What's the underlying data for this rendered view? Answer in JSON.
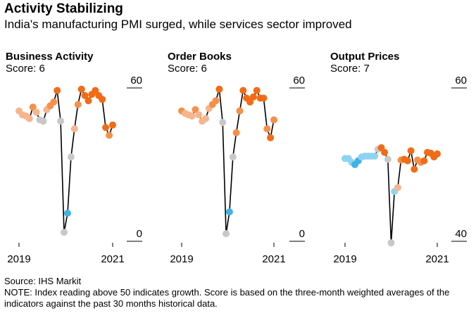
{
  "title": "Activity Stabilizing",
  "subtitle": "India's manufacturing PMI surged, while services sector improved",
  "source": "Source: IHS Markit",
  "note": "NOTE: Index reading above 50 indicates growth. Score is based on the three-month weighted averages of the indicators against the past 30 months historical data.",
  "colors": {
    "line": "#000000",
    "rule": "#000000",
    "dark_orange": "#f26b16",
    "mid_orange": "#f5904a",
    "light_orange": "#f6b58c",
    "grey": "#c8c8c8",
    "blue": "#3cb4e6",
    "light_blue": "#8fd3f2"
  },
  "chart_data": [
    {
      "type": "line",
      "title": "Business Activity",
      "subtitle": "Score: 6",
      "x_tick_labels": [
        "2019",
        "2021"
      ],
      "ylim": [
        0,
        60
      ],
      "y_tick_labels": [
        "60",
        "0"
      ],
      "series": [
        {
          "values": [
            {
              "v": 51,
              "c": "light_orange"
            },
            {
              "v": 49.5,
              "c": "light_orange"
            },
            {
              "v": 49,
              "c": "light_orange"
            },
            {
              "v": 48,
              "c": "light_orange"
            },
            {
              "v": 52.5,
              "c": "mid_orange"
            },
            {
              "v": 50.5,
              "c": "light_orange"
            },
            {
              "v": 47.5,
              "c": "grey"
            },
            {
              "v": 47,
              "c": "grey"
            },
            {
              "v": 51.5,
              "c": "light_orange"
            },
            {
              "v": 53,
              "c": "mid_orange"
            },
            {
              "v": 54.5,
              "c": "mid_orange"
            },
            {
              "v": 59,
              "c": "dark_orange"
            },
            {
              "v": 47,
              "c": "grey"
            },
            {
              "v": 3.5,
              "c": "grey"
            },
            {
              "v": 11,
              "c": "blue"
            },
            {
              "v": 33,
              "c": "grey"
            },
            {
              "v": 44,
              "c": "light_orange"
            },
            {
              "v": 53.5,
              "c": "mid_orange"
            },
            {
              "v": 59.5,
              "c": "dark_orange"
            },
            {
              "v": 57,
              "c": "dark_orange"
            },
            {
              "v": 55,
              "c": "dark_orange"
            },
            {
              "v": 57.5,
              "c": "dark_orange"
            },
            {
              "v": 59,
              "c": "dark_orange"
            },
            {
              "v": 57,
              "c": "dark_orange"
            },
            {
              "v": 55.5,
              "c": "dark_orange"
            },
            {
              "v": 44.5,
              "c": "dark_orange"
            },
            {
              "v": 41.5,
              "c": "mid_orange"
            },
            {
              "v": 45.5,
              "c": "dark_orange"
            }
          ]
        }
      ]
    },
    {
      "type": "line",
      "title": "Order Books",
      "subtitle": "Score: 6",
      "x_tick_labels": [
        "2019",
        "2021"
      ],
      "ylim": [
        0,
        60
      ],
      "y_tick_labels": [
        "60",
        "0"
      ],
      "series": [
        {
          "values": [
            {
              "v": 51,
              "c": "mid_orange"
            },
            {
              "v": 50,
              "c": "light_orange"
            },
            {
              "v": 49.5,
              "c": "light_orange"
            },
            {
              "v": 49,
              "c": "light_orange"
            },
            {
              "v": 51.5,
              "c": "mid_orange"
            },
            {
              "v": 49.5,
              "c": "light_orange"
            },
            {
              "v": 47,
              "c": "light_orange"
            },
            {
              "v": 48,
              "c": "light_orange"
            },
            {
              "v": 52,
              "c": "light_orange"
            },
            {
              "v": 53.5,
              "c": "mid_orange"
            },
            {
              "v": 55,
              "c": "mid_orange"
            },
            {
              "v": 59.5,
              "c": "dark_orange"
            },
            {
              "v": 46.5,
              "c": "grey"
            },
            {
              "v": 3,
              "c": "grey"
            },
            {
              "v": 11.5,
              "c": "blue"
            },
            {
              "v": 33,
              "c": "grey"
            },
            {
              "v": 42.5,
              "c": "mid_orange"
            },
            {
              "v": 51,
              "c": "mid_orange"
            },
            {
              "v": 59,
              "c": "dark_orange"
            },
            {
              "v": 56,
              "c": "dark_orange"
            },
            {
              "v": 54.5,
              "c": "dark_orange"
            },
            {
              "v": 56.5,
              "c": "dark_orange"
            },
            {
              "v": 59,
              "c": "dark_orange"
            },
            {
              "v": 56,
              "c": "dark_orange"
            },
            {
              "v": 56,
              "c": "dark_orange"
            },
            {
              "v": 44,
              "c": "mid_orange"
            },
            {
              "v": 40.5,
              "c": "dark_orange"
            },
            {
              "v": 47.5,
              "c": "mid_orange"
            }
          ]
        }
      ]
    },
    {
      "type": "line",
      "title": "Output Prices",
      "subtitle": "Score: 7",
      "x_tick_labels": [
        "2019",
        "2021"
      ],
      "ylim": [
        40,
        60
      ],
      "y_tick_labels": [
        "60",
        "40"
      ],
      "series": [
        {
          "values": [
            {
              "v": 50.8,
              "c": "light_blue"
            },
            {
              "v": 50.8,
              "c": "light_blue"
            },
            {
              "v": 50.3,
              "c": "light_blue"
            },
            {
              "v": 50.0,
              "c": "blue"
            },
            {
              "v": 50.5,
              "c": "blue"
            },
            {
              "v": 51.0,
              "c": "light_blue"
            },
            {
              "v": 51.1,
              "c": "light_blue"
            },
            {
              "v": 51.1,
              "c": "light_blue"
            },
            {
              "v": 51.1,
              "c": "light_blue"
            },
            {
              "v": 51.1,
              "c": "light_blue"
            },
            {
              "v": 52.0,
              "c": "grey"
            },
            {
              "v": 52.2,
              "c": "dark_orange"
            },
            {
              "v": 51.6,
              "c": "dark_orange"
            },
            {
              "v": 50.7,
              "c": "grey"
            },
            {
              "v": 39.8,
              "c": "grey"
            },
            {
              "v": 46.5,
              "c": "light_blue"
            },
            {
              "v": 47.0,
              "c": "light_orange"
            },
            {
              "v": 50.6,
              "c": "mid_orange"
            },
            {
              "v": 50.7,
              "c": "dark_orange"
            },
            {
              "v": 50.5,
              "c": "dark_orange"
            },
            {
              "v": 51.8,
              "c": "dark_orange"
            },
            {
              "v": 49.4,
              "c": "dark_orange"
            },
            {
              "v": 50.6,
              "c": "mid_orange"
            },
            {
              "v": 50.3,
              "c": "mid_orange"
            },
            {
              "v": 50.5,
              "c": "dark_orange"
            },
            {
              "v": 51.6,
              "c": "dark_orange"
            },
            {
              "v": 51.5,
              "c": "dark_orange"
            },
            {
              "v": 51.0,
              "c": "dark_orange"
            },
            {
              "v": 51.4,
              "c": "dark_orange"
            }
          ]
        }
      ]
    }
  ]
}
